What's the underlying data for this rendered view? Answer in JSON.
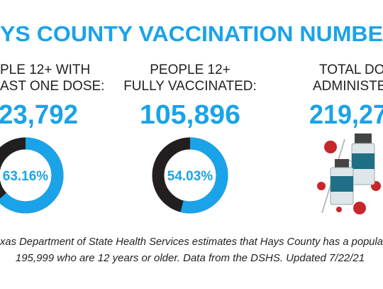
{
  "header": {
    "title": "YS COUNTY VACCINATION NUMBE"
  },
  "stats": [
    {
      "label_lines": [
        "PLE  12+ WITH",
        "AST ONE DOSE:"
      ],
      "number": "23,792",
      "percent": 63.16,
      "percent_label": "63.16%"
    },
    {
      "label_lines": [
        "PEOPLE  12+",
        "FULLY VACCINATED:"
      ],
      "number": "105,896",
      "percent": 54.03,
      "percent_label": "54.03%"
    },
    {
      "label_lines": [
        "TOTAL DOSE",
        "ADMINISTERE"
      ],
      "number": "219,27"
    }
  ],
  "footer": {
    "lines": [
      "xas Department of State Health Services estimates that Hays County has a popula",
      "195,999 who are 12 years or older. Data from the DSHS. Updated 7/22/21"
    ]
  }
}
